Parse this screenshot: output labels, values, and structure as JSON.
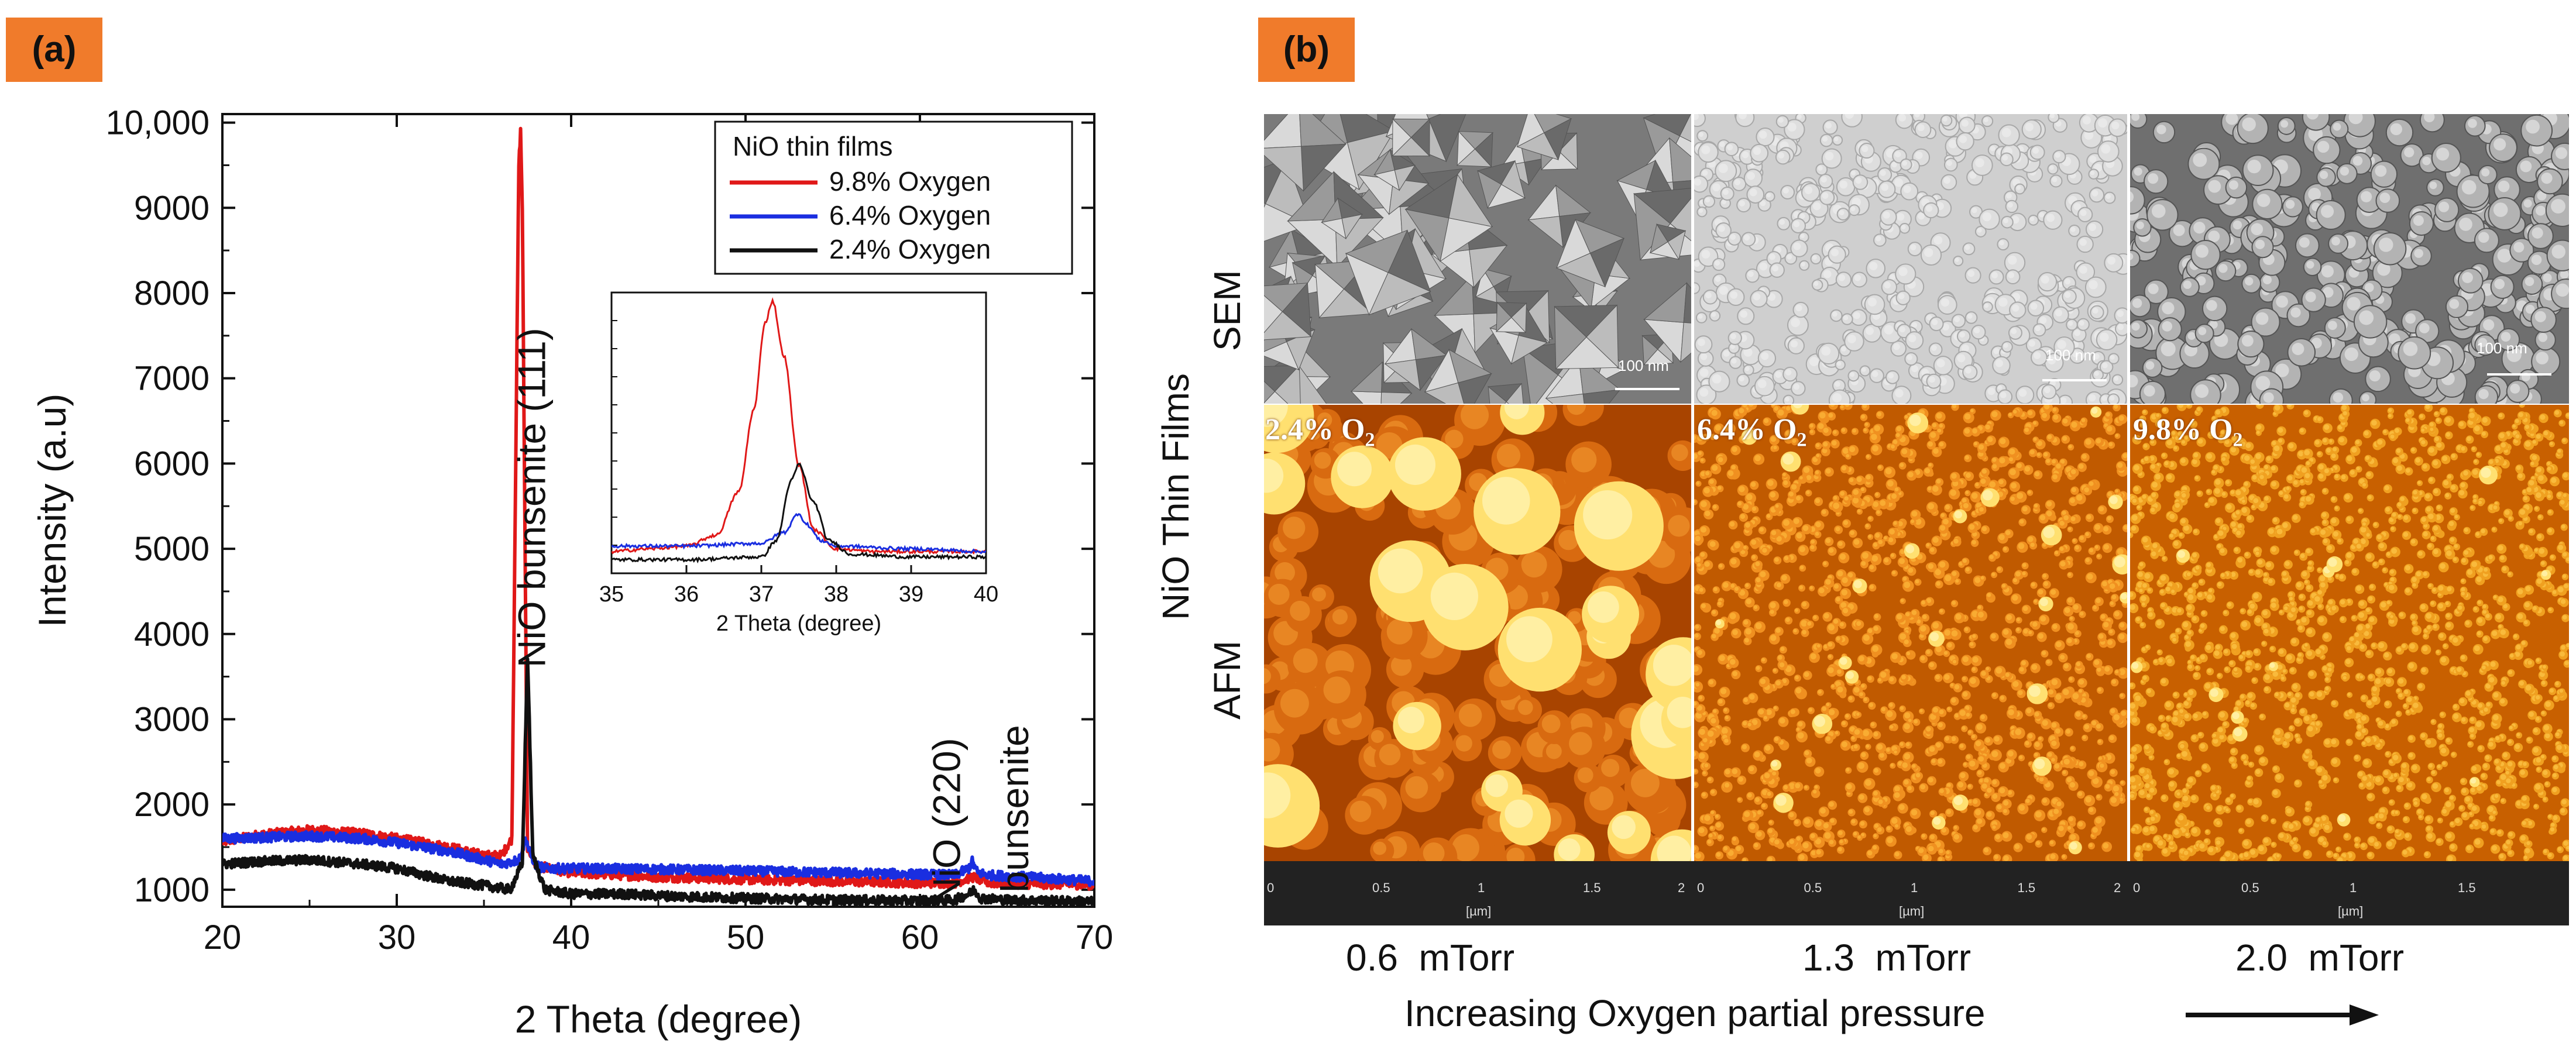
{
  "panel_a": {
    "tag": "(a)",
    "chart_data": {
      "type": "line",
      "title": "",
      "xlabel": "2 Theta (degree)",
      "ylabel": "Intensity (a.u)",
      "xlim": [
        20,
        70
      ],
      "ylim": [
        800,
        10100
      ],
      "xticks": [
        20,
        30,
        40,
        50,
        60,
        70
      ],
      "yticks": [
        1000,
        2000,
        3000,
        4000,
        5000,
        6000,
        7000,
        8000,
        9000,
        10000
      ],
      "ytick_labels": [
        "1000",
        "2000",
        "3000",
        "4000",
        "5000",
        "6000",
        "7000",
        "8000",
        "9000",
        "10,000"
      ],
      "legend_title": "NiO thin films",
      "legend_position": "top-right",
      "series": [
        {
          "name": "9.8% Oxygen",
          "color": "#e01818",
          "x": [
            20,
            22,
            25,
            28,
            30,
            33,
            35,
            36,
            36.6,
            37.0,
            37.1,
            37.2,
            37.5,
            38,
            40,
            45,
            50,
            55,
            60,
            62,
            63,
            64,
            66,
            70
          ],
          "y": [
            1560,
            1640,
            1700,
            1660,
            1600,
            1500,
            1400,
            1400,
            1600,
            9500,
            9900,
            9000,
            1500,
            1280,
            1200,
            1150,
            1120,
            1100,
            1080,
            1080,
            1150,
            1080,
            1070,
            1060
          ]
        },
        {
          "name": "6.4% Oxygen",
          "color": "#1a2ee0",
          "x": [
            20,
            22,
            25,
            28,
            30,
            33,
            35,
            36,
            37,
            37.4,
            37.6,
            38,
            38.5,
            40,
            45,
            50,
            55,
            60,
            62,
            62.8,
            63.0,
            63.3,
            64,
            66,
            70
          ],
          "y": [
            1600,
            1610,
            1630,
            1600,
            1550,
            1450,
            1350,
            1300,
            1350,
            1600,
            1450,
            1280,
            1250,
            1250,
            1240,
            1220,
            1200,
            1180,
            1170,
            1250,
            1330,
            1200,
            1170,
            1150,
            1100
          ]
        },
        {
          "name": "2.4% Oxygen",
          "color": "#111111",
          "x": [
            20,
            22,
            25,
            28,
            30,
            33,
            35,
            36.5,
            37.2,
            37.5,
            37.8,
            38.5,
            40,
            43,
            45,
            50,
            55,
            60,
            62,
            62.9,
            63.1,
            63.5,
            65,
            70
          ],
          "y": [
            1300,
            1330,
            1350,
            1300,
            1250,
            1100,
            1050,
            1000,
            1300,
            3750,
            1400,
            1000,
            950,
            950,
            930,
            900,
            880,
            870,
            880,
            960,
            1000,
            900,
            880,
            860
          ]
        }
      ],
      "annotations": [
        {
          "text": "NiO bunsenite (111)",
          "x": 38.5,
          "y": 5600
        },
        {
          "text": "NiO (220)",
          "x": 62.3,
          "y": 1800
        },
        {
          "text": "bunsenite",
          "x": 66.2,
          "y": 1950
        }
      ]
    },
    "inset": {
      "type": "line",
      "xlabel": "2 Theta (degree)",
      "xlim": [
        35,
        40
      ],
      "xticks": [
        35,
        36,
        37,
        38,
        39,
        40
      ],
      "series": [
        {
          "name": "9.8% Oxygen",
          "color": "#e01818",
          "x": [
            35,
            35.5,
            36,
            36.4,
            36.7,
            36.9,
            37.05,
            37.15,
            37.3,
            37.5,
            37.7,
            38,
            38.5,
            39,
            40
          ],
          "y": [
            0.08,
            0.09,
            0.1,
            0.14,
            0.3,
            0.6,
            0.92,
            1.0,
            0.8,
            0.4,
            0.16,
            0.09,
            0.08,
            0.08,
            0.08
          ]
        },
        {
          "name": "6.4% Oxygen",
          "color": "#1a2ee0",
          "x": [
            35,
            36,
            37,
            37.3,
            37.5,
            37.6,
            37.8,
            38,
            39,
            40
          ],
          "y": [
            0.1,
            0.1,
            0.11,
            0.15,
            0.22,
            0.18,
            0.12,
            0.1,
            0.09,
            0.08
          ]
        },
        {
          "name": "2.4% Oxygen",
          "color": "#111111",
          "x": [
            35,
            36,
            37,
            37.2,
            37.4,
            37.5,
            37.7,
            37.9,
            38.2,
            39,
            40
          ],
          "y": [
            0.05,
            0.05,
            0.06,
            0.12,
            0.34,
            0.4,
            0.26,
            0.12,
            0.07,
            0.06,
            0.06
          ]
        }
      ]
    }
  },
  "panel_b": {
    "tag": "(b)",
    "side_label": "NiO Thin Films",
    "row_labels": [
      "SEM",
      "AFM"
    ],
    "sem_scalebars": [
      "100 nm",
      "100 nm",
      "100 nm"
    ],
    "afm_labels": [
      {
        "main": "2.4% O",
        "sub": "2"
      },
      {
        "main": "6.4% O",
        "sub": "2"
      },
      {
        "main": "9.8% O",
        "sub": "2"
      }
    ],
    "ruler": {
      "ticks": [
        [
          "0",
          "0.5",
          "1",
          "1.5",
          "2"
        ],
        [
          "0",
          "0.5",
          "1",
          "1.5",
          "2"
        ],
        [
          "0",
          "0.5",
          "1",
          "1.5",
          ""
        ]
      ],
      "unit": "[µm]"
    },
    "pressures": [
      "0.6  mTorr",
      "1.3  mTorr",
      "2.0  mTorr"
    ],
    "xlabel": "Increasing Oxygen partial pressure",
    "arrow_color": "#111111",
    "afm_colors": [
      "#c85a00",
      "#e08a10",
      "#ffd040"
    ]
  }
}
